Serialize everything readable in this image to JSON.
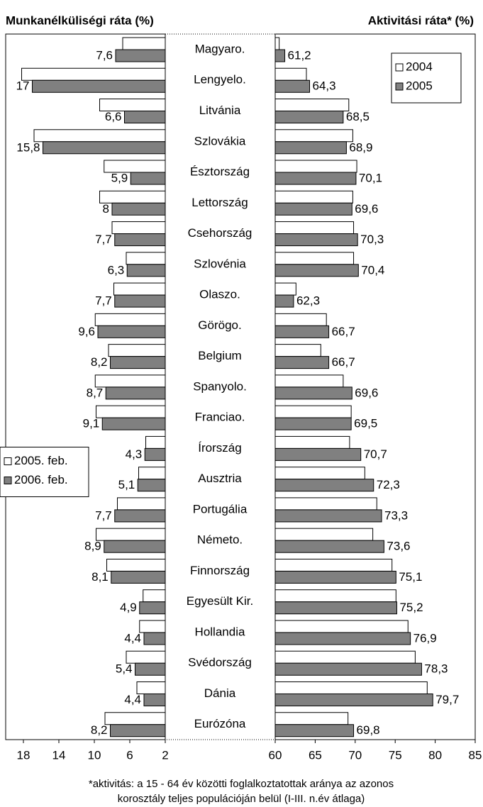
{
  "chart_data": [
    {
      "type": "bar",
      "orientation": "horizontal",
      "title": "Munkanélküliségi ráta (%)",
      "categories": [
        "Magyaro.",
        "Lengyelo.",
        "Litvánia",
        "Szlovákia",
        "Észtország",
        "Lettország",
        "Csehország",
        "Szlovénia",
        "Olaszo.",
        "Görögo.",
        "Belgium",
        "Spanyolo.",
        "Franciao.",
        "Írország",
        "Ausztria",
        "Portugália",
        "Németo.",
        "Finnország",
        "Egyesült Kir.",
        "Hollandia",
        "Svédország",
        "Dánia",
        "Eurózóna"
      ],
      "series": [
        {
          "name": "2005. feb.",
          "color": "#ffffff",
          "values": [
            6.8,
            18.2,
            9.4,
            16.8,
            8.9,
            9.4,
            8.0,
            6.4,
            7.8,
            9.9,
            8.4,
            9.9,
            9.8,
            4.2,
            5.0,
            7.4,
            9.8,
            8.6,
            4.5,
            4.9,
            6.4,
            5.2,
            8.8
          ]
        },
        {
          "name": "2006. feb.",
          "color": "#808080",
          "values": [
            7.6,
            17,
            6.6,
            15.8,
            5.9,
            8,
            7.7,
            6.3,
            7.7,
            9.6,
            8.2,
            8.7,
            9.1,
            4.3,
            5.1,
            7.7,
            8.9,
            8.1,
            4.9,
            4.4,
            5.4,
            4.4,
            8.2
          ],
          "value_labels": [
            "7,6",
            "17",
            "6,6",
            "15,8",
            "5,9",
            "8",
            "7,7",
            "6,3",
            "7,7",
            "9,6",
            "8,2",
            "8,7",
            "9,1",
            "4,3",
            "5,1",
            "7,7",
            "8,9",
            "8,1",
            "4,9",
            "4,4",
            "5,4",
            "4,4",
            "8,2"
          ]
        }
      ],
      "xlim": [
        20,
        2
      ],
      "xticks": [
        18,
        14,
        10,
        6,
        2
      ],
      "legend": "center left"
    },
    {
      "type": "bar",
      "orientation": "horizontal",
      "title": "Aktivitási ráta* (%)",
      "series": [
        {
          "name": "2004",
          "color": "#ffffff",
          "values": [
            60.5,
            63.9,
            69.2,
            69.7,
            70.2,
            69.7,
            69.8,
            69.8,
            62.6,
            66.4,
            65.7,
            68.5,
            69.5,
            69.3,
            71.2,
            72.7,
            72.2,
            74.6,
            75.1,
            76.6,
            77.5,
            79.0,
            69.1
          ]
        },
        {
          "name": "2005",
          "color": "#808080",
          "values": [
            61.2,
            64.3,
            68.5,
            68.9,
            70.1,
            69.6,
            70.3,
            70.4,
            62.3,
            66.7,
            66.7,
            69.6,
            69.5,
            70.7,
            72.3,
            73.3,
            73.6,
            75.1,
            75.2,
            76.9,
            78.3,
            79.7,
            69.8
          ],
          "value_labels": [
            "61,2",
            "64,3",
            "68,5",
            "68,9",
            "70,1",
            "69,6",
            "70,3",
            "70,4",
            "62,3",
            "66,7",
            "66,7",
            "69,6",
            "69,5",
            "70,7",
            "72,3",
            "73,3",
            "73,6",
            "75,1",
            "75,2",
            "76,9",
            "78,3",
            "79,7",
            "69,8"
          ]
        }
      ],
      "xlim": [
        60,
        85
      ],
      "xticks": [
        60,
        65,
        70,
        75,
        80,
        85
      ],
      "legend": "upper right",
      "footnote": [
        "*aktivitás: a 15 - 64 év közötti foglalkoztatottak aránya az azonos",
        "korosztály teljes populációján belül (I-III. n.év átlaga)"
      ]
    }
  ]
}
